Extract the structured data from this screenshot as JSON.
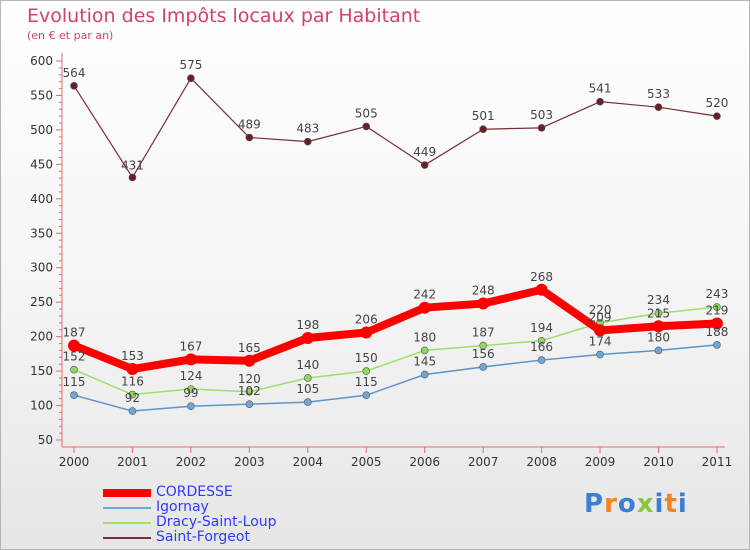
{
  "title": "Evolution des Impôts locaux par Habitant",
  "subtitle": "(en € et par an)",
  "logo": {
    "text": "Proxiti",
    "letters": [
      "P",
      "r",
      "o",
      "x",
      "i",
      "t",
      "i"
    ],
    "colors": [
      "#3b7fd4",
      "#f58220",
      "#3b7fd4",
      "#8cc63f",
      "#3b7fd4",
      "#f58220",
      "#3b7fd4"
    ]
  },
  "chart_data": {
    "type": "line",
    "categories": [
      "2000",
      "2001",
      "2002",
      "2003",
      "2004",
      "2005",
      "2006",
      "2007",
      "2008",
      "2009",
      "2010",
      "2011"
    ],
    "y_ticks": [
      "50",
      "100",
      "150",
      "200",
      "250",
      "300",
      "350",
      "400",
      "450",
      "500",
      "550",
      "600"
    ],
    "ylim": [
      50,
      600
    ],
    "grid": false,
    "legend_position": "bottom-left",
    "series": [
      {
        "name": "CORDESSE",
        "color": "#ff0000",
        "values": [
          187,
          153,
          167,
          165,
          198,
          206,
          242,
          248,
          268,
          209,
          215,
          219
        ],
        "labels": [
          "187",
          "153",
          "167",
          "165",
          "198",
          "206",
          "242",
          "248",
          "268",
          "209",
          "215",
          "219"
        ]
      },
      {
        "name": "Igornay",
        "color": "#6fa6d6",
        "values": [
          115,
          92,
          99,
          102,
          105,
          115,
          145,
          156,
          166,
          174,
          180,
          188
        ],
        "labels": [
          "115",
          "92",
          "99",
          "102",
          "105",
          "115",
          "145",
          "156",
          "166",
          "174",
          "180",
          "188"
        ]
      },
      {
        "name": "Dracy-Saint-Loup",
        "color": "#9be06a",
        "values": [
          152,
          116,
          124,
          120,
          140,
          150,
          180,
          187,
          194,
          220,
          234,
          243
        ],
        "labels": [
          "152",
          "116",
          "124",
          "120",
          "140",
          "150",
          "180",
          "187",
          "194",
          "220",
          "234",
          "243"
        ]
      },
      {
        "name": "Saint-Forgeot",
        "color": "#7a2d34",
        "values": [
          564,
          431,
          575,
          489,
          483,
          505,
          449,
          501,
          503,
          541,
          533,
          520
        ],
        "labels": [
          "564",
          "431",
          "575",
          "489",
          "483",
          "505",
          "449",
          "501",
          "503",
          "541",
          "533",
          "520"
        ]
      }
    ]
  }
}
